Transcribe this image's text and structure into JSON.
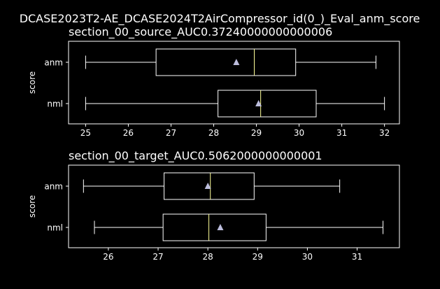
{
  "suptitle": "DCASE2023T2-AE_DCASE2024T2AirCompressor_id(0_)_Eval_anm_score",
  "colors": {
    "background": "#000000",
    "axes": "#ffffff",
    "median": "#ffff99",
    "mean_marker": "#bcbddc"
  },
  "chart_data": [
    {
      "type": "boxplot",
      "orientation": "horizontal",
      "title": "section_00_source_AUC0.37240000000000006",
      "ylabel": "score",
      "xlim": [
        24.6,
        32.35
      ],
      "xticks": [
        25,
        26,
        27,
        28,
        29,
        30,
        31,
        32
      ],
      "categories": [
        "anm",
        "nml"
      ],
      "boxes": [
        {
          "label": "anm",
          "whislo": 25.0,
          "q1": 26.65,
          "median": 28.95,
          "q3": 29.92,
          "whishi": 31.8,
          "mean": 28.53
        },
        {
          "label": "nml",
          "whislo": 25.0,
          "q1": 28.1,
          "median": 29.1,
          "q3": 30.4,
          "whishi": 32.0,
          "mean": 29.05
        }
      ]
    },
    {
      "type": "boxplot",
      "orientation": "horizontal",
      "title": "section_00_target_AUC0.5062000000000001",
      "ylabel": "score",
      "xlim": [
        25.2,
        31.85
      ],
      "xticks": [
        26,
        27,
        28,
        29,
        30,
        31
      ],
      "categories": [
        "anm",
        "nml"
      ],
      "boxes": [
        {
          "label": "anm",
          "whislo": 25.5,
          "q1": 27.12,
          "median": 28.05,
          "q3": 28.93,
          "whishi": 30.65,
          "mean": 28.0
        },
        {
          "label": "nml",
          "whislo": 25.72,
          "q1": 27.1,
          "median": 28.02,
          "q3": 29.17,
          "whishi": 31.52,
          "mean": 28.25
        }
      ]
    }
  ]
}
